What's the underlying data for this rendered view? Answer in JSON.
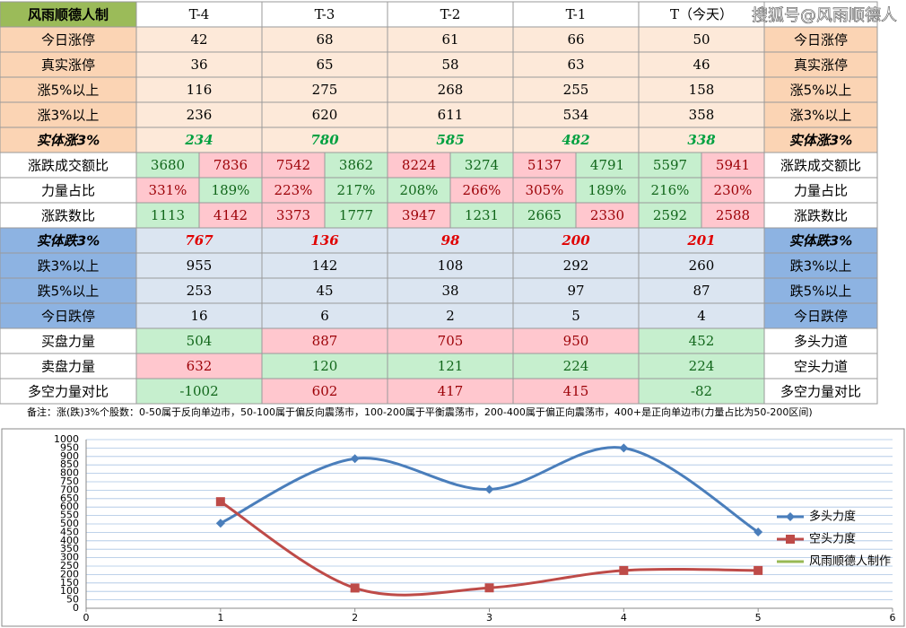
{
  "watermark": "搜狐号@风雨顺德人",
  "table": {
    "header": [
      "风雨顺德人制",
      "T-4",
      "T-3",
      "T-2",
      "T-1",
      "T（今天）"
    ],
    "rows": [
      {
        "label": "今日涨停",
        "cells": [
          "42",
          "68",
          "61",
          "66",
          "50"
        ],
        "right": "今日涨停"
      },
      {
        "label": "真实涨停",
        "cells": [
          "36",
          "65",
          "58",
          "63",
          "46"
        ],
        "right": "真实涨停"
      },
      {
        "label": "涨5%以上",
        "cells": [
          "116",
          "275",
          "268",
          "255",
          "158"
        ],
        "right": "涨5%以上"
      },
      {
        "label": "涨3%以上",
        "cells": [
          "236",
          "620",
          "611",
          "534",
          "358"
        ],
        "right": "涨3%以上"
      },
      {
        "label": "实体涨3%",
        "cells": [
          "234",
          "780",
          "585",
          "482",
          "338"
        ],
        "right": "实体涨3%"
      },
      {
        "label": "涨跌成交额比",
        "cells": [
          [
            "3680",
            "7836"
          ],
          [
            "7542",
            "3862"
          ],
          [
            "8224",
            "3274"
          ],
          [
            "5137",
            "4791"
          ],
          [
            "5597",
            "5941"
          ]
        ],
        "right": "涨跌成交额比"
      },
      {
        "label": "力量占比",
        "cells": [
          [
            "331%",
            "189%"
          ],
          [
            "223%",
            "217%"
          ],
          [
            "208%",
            "266%"
          ],
          [
            "305%",
            "189%"
          ],
          [
            "216%",
            "230%"
          ]
        ],
        "right": "力量占比"
      },
      {
        "label": "涨跌数比",
        "cells": [
          [
            "1113",
            "4142"
          ],
          [
            "3373",
            "1777"
          ],
          [
            "3947",
            "1231"
          ],
          [
            "2665",
            "2330"
          ],
          [
            "2592",
            "2588"
          ]
        ],
        "right": "涨跌数比"
      },
      {
        "label": "实体跌3%",
        "cells": [
          "767",
          "136",
          "98",
          "200",
          "201"
        ],
        "right": "实体跌3%"
      },
      {
        "label": "跌3%以上",
        "cells": [
          "955",
          "142",
          "108",
          "292",
          "260"
        ],
        "right": "跌3%以上"
      },
      {
        "label": "跌5%以上",
        "cells": [
          "253",
          "45",
          "38",
          "97",
          "87"
        ],
        "right": "跌5%以上"
      },
      {
        "label": "今日跌停",
        "cells": [
          "16",
          "6",
          "2",
          "5",
          "4"
        ],
        "right": "今日跌停"
      },
      {
        "label": "买盘力量",
        "cells": [
          "504",
          "887",
          "705",
          "950",
          "452"
        ],
        "right": "多头力道"
      },
      {
        "label": "卖盘力量",
        "cells": [
          "632",
          "120",
          "121",
          "224",
          "224"
        ],
        "right": "空头力道"
      },
      {
        "label": "多空力量对比",
        "cells": [
          "-1002",
          "602",
          "417",
          "415",
          "-82"
        ],
        "right": "多空力量对比"
      }
    ],
    "note": "备注：涨(跌)3%个股数：0-50属于反向单边市，50-100属于偏反向震荡市，100-200属于平衡震荡市，200-400属于偏正向震荡市，400+是正向单边市(力量占比为50-200区间)"
  },
  "chart_data": {
    "type": "line",
    "x": [
      1,
      2,
      3,
      4,
      5
    ],
    "series": [
      {
        "name": "多头力度",
        "color": "#4a7ebb",
        "marker": "diamond",
        "values": [
          504,
          887,
          705,
          950,
          452
        ]
      },
      {
        "name": "空头力度",
        "color": "#be4b48",
        "marker": "square",
        "values": [
          632,
          120,
          121,
          224,
          224
        ]
      },
      {
        "name": "风雨顺德人制作",
        "color": "#98b954",
        "values": [
          null,
          null,
          null,
          null,
          null
        ]
      }
    ],
    "xlim": [
      0,
      6
    ],
    "xticks": [
      0,
      1,
      2,
      3,
      4,
      5,
      6
    ],
    "ylim": [
      0,
      1000
    ],
    "yticks": [
      0,
      50,
      100,
      150,
      200,
      250,
      300,
      350,
      400,
      450,
      500,
      550,
      600,
      650,
      700,
      750,
      800,
      850,
      900,
      950,
      1000
    ],
    "grid": true,
    "legend": "right",
    "smooth": true
  }
}
